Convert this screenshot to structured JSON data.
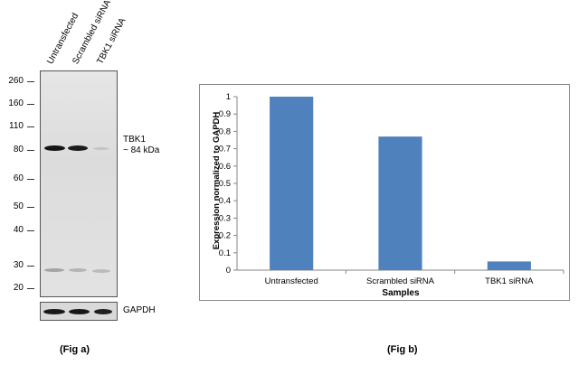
{
  "blot": {
    "lanes": [
      "Untransfected",
      "Scrambled siRNA",
      "TBK1 siRNA"
    ],
    "markers": [
      "260",
      "160",
      "110",
      "80",
      "60",
      "50",
      "40",
      "30",
      "20"
    ],
    "target_label_line1": "TBK1",
    "target_label_line2": "~ 84 kDa",
    "loading_label": "GAPDH",
    "caption": "(Fig a)"
  },
  "chart_caption": "(Fig b)",
  "chart_data": {
    "type": "bar",
    "categories": [
      "Untransfected",
      "Scrambled siRNA",
      "TBK1 siRNA"
    ],
    "series": [
      {
        "values": [
          1.0,
          0.77,
          0.05
        ]
      }
    ],
    "xlabel": "Samples",
    "ylabel": "Expression  normalized to GAPDH",
    "ylim": [
      0,
      1
    ],
    "yticks": [
      "0",
      "0.1",
      "0.2",
      "0.3",
      "0.4",
      "0.5",
      "0.6",
      "0.7",
      "0.8",
      "0.9",
      "1"
    ],
    "bar_color": "#4f81bd",
    "grid": false,
    "legend": "none"
  }
}
